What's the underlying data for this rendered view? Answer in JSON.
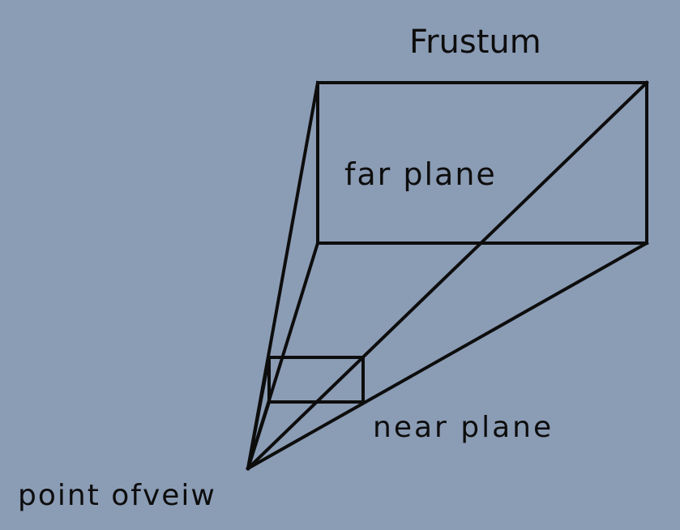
{
  "diagram": {
    "title": "Frustum",
    "far_plane_label": "far plane",
    "near_plane_label": "near plane",
    "viewpoint_label": "point ofveiw"
  },
  "colors": {
    "background": "#8b9cb5",
    "stroke": "#0d0d0d"
  }
}
